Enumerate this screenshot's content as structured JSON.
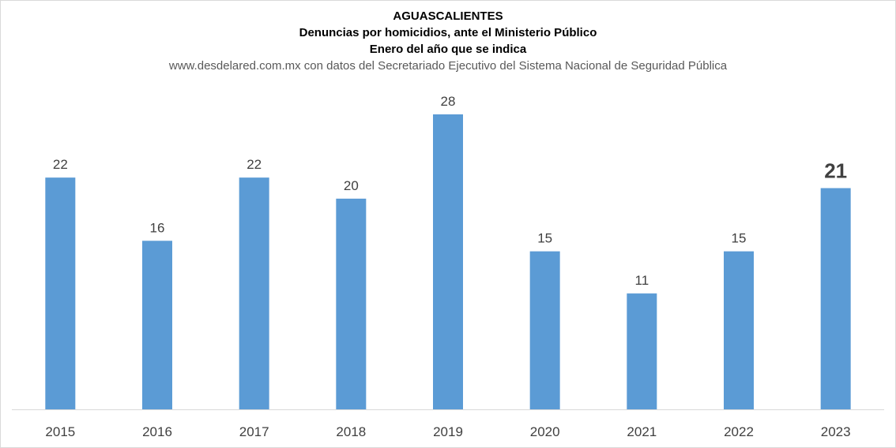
{
  "chart_data": {
    "type": "bar",
    "title": "AGUASCALIENTES",
    "subtitle_1": "Denuncias por homicidios, ante el Ministerio Público",
    "subtitle_2": "Enero del año que se indica",
    "source": "www.desdelared.com.mx con datos del Secretariado Ejecutivo del Sistema Nacional de Seguridad Pública",
    "categories": [
      "2015",
      "2016",
      "2017",
      "2018",
      "2019",
      "2020",
      "2021",
      "2022",
      "2023"
    ],
    "values": [
      22,
      16,
      22,
      20,
      28,
      15,
      11,
      15,
      21
    ],
    "highlight_index": 8,
    "ylim": [
      0,
      28
    ],
    "grid": false,
    "legend": "none",
    "bar_color": "#5b9bd5",
    "axis_color": "#d9d9d9"
  }
}
